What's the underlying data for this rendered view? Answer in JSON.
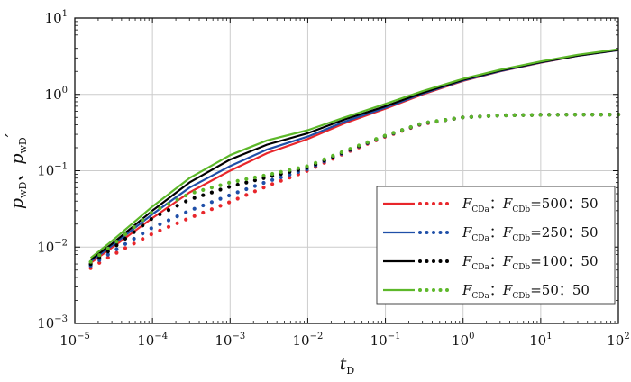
{
  "chart_data": {
    "type": "line",
    "xscale": "log",
    "yscale": "log",
    "xlim": [
      1e-05,
      100
    ],
    "ylim": [
      0.001,
      10
    ],
    "grid": true,
    "xlabel": {
      "base": "t",
      "sub": "D"
    },
    "ylabel": {
      "p": "p",
      "sub": "wD",
      "sep": "、",
      "prime": "′"
    },
    "x_ticks": [
      {
        "base": "10",
        "exp": "−5"
      },
      {
        "base": "10",
        "exp": "−4"
      },
      {
        "base": "10",
        "exp": "−3"
      },
      {
        "base": "10",
        "exp": "−2"
      },
      {
        "base": "10",
        "exp": "−1"
      },
      {
        "base": "10",
        "exp": "0"
      },
      {
        "base": "10",
        "exp": "1"
      },
      {
        "base": "10",
        "exp": "2"
      }
    ],
    "y_ticks": [
      {
        "base": "10",
        "exp": "−3"
      },
      {
        "base": "10",
        "exp": "−2"
      },
      {
        "base": "10",
        "exp": "−1"
      },
      {
        "base": "10",
        "exp": "0"
      },
      {
        "base": "10",
        "exp": "1"
      }
    ],
    "legend_position": "right",
    "x": [
      1.6e-05,
      3e-05,
      0.0001,
      0.0003,
      0.001,
      0.003,
      0.01,
      0.03,
      0.1,
      0.3,
      1,
      3,
      10,
      30,
      100
    ],
    "series": [
      {
        "name": "FCDa:FCDb=500:50",
        "label": {
          "f": "F",
          "a": "CDa",
          "b": "CDb",
          "colon": "：",
          "ratio": "=500：50"
        },
        "color": "#e8262b",
        "pwd": [
          0.0062,
          0.0098,
          0.024,
          0.052,
          0.1,
          0.17,
          0.26,
          0.42,
          0.65,
          1.0,
          1.5,
          2.0,
          2.6,
          3.2,
          3.8
        ],
        "dpwd": [
          0.0053,
          0.0078,
          0.015,
          0.024,
          0.039,
          0.063,
          0.1,
          0.17,
          0.28,
          0.41,
          0.5,
          0.53,
          0.54,
          0.545,
          0.545
        ]
      },
      {
        "name": "FCDa:FCDb=250:50",
        "label": {
          "f": "F",
          "a": "CDa",
          "b": "CDb",
          "colon": "：",
          "ratio": "=250：50"
        },
        "color": "#1f4fa8",
        "pwd": [
          0.0065,
          0.0104,
          0.027,
          0.06,
          0.115,
          0.19,
          0.28,
          0.44,
          0.67,
          1.02,
          1.52,
          2.02,
          2.62,
          3.2,
          3.8
        ],
        "dpwd": [
          0.0057,
          0.0086,
          0.018,
          0.03,
          0.048,
          0.072,
          0.105,
          0.175,
          0.285,
          0.415,
          0.5,
          0.53,
          0.54,
          0.545,
          0.545
        ]
      },
      {
        "name": "FCDa:FCDb=100:50",
        "label": {
          "f": "F",
          "a": "CDa",
          "b": "CDb",
          "colon": "：",
          "ratio": "=100：50"
        },
        "color": "#000000",
        "pwd": [
          0.0068,
          0.011,
          0.03,
          0.07,
          0.14,
          0.22,
          0.31,
          0.47,
          0.7,
          1.05,
          1.55,
          2.05,
          2.65,
          3.22,
          3.82
        ],
        "dpwd": [
          0.006,
          0.0095,
          0.024,
          0.042,
          0.062,
          0.082,
          0.11,
          0.178,
          0.288,
          0.418,
          0.5,
          0.53,
          0.54,
          0.545,
          0.545
        ]
      },
      {
        "name": "FCDa:FCDb=50:50",
        "label": {
          "f": "F",
          "a": "CDa",
          "b": "CDb",
          "colon": "：",
          "ratio": "=50：50"
        },
        "color": "#5db82a",
        "pwd": [
          0.0072,
          0.012,
          0.034,
          0.08,
          0.16,
          0.25,
          0.34,
          0.5,
          0.75,
          1.1,
          1.6,
          2.1,
          2.7,
          3.3,
          3.9
        ],
        "dpwd": [
          0.0064,
          0.0105,
          0.029,
          0.05,
          0.07,
          0.088,
          0.115,
          0.182,
          0.29,
          0.42,
          0.5,
          0.53,
          0.54,
          0.545,
          0.545
        ]
      }
    ]
  }
}
